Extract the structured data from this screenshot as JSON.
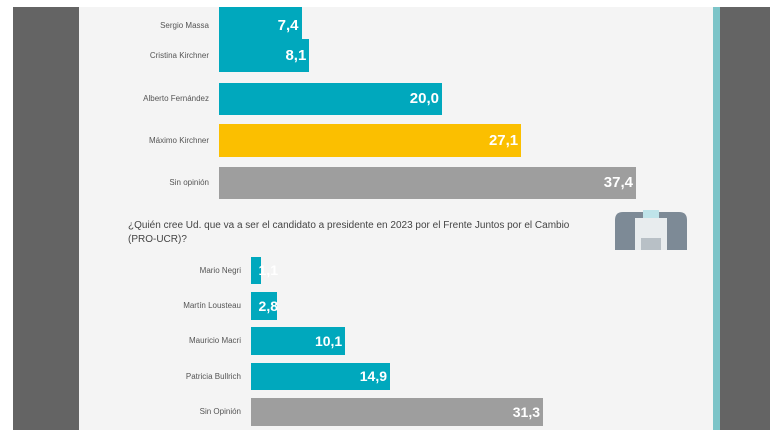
{
  "chart_data": [
    {
      "type": "bar",
      "orientation": "horizontal",
      "categories": [
        "Sergio Massa",
        "Cristina Kirchner",
        "Alberto Fernández",
        "Máximo Kirchner",
        "Sin opinión"
      ],
      "values": [
        7.4,
        8.1,
        20.0,
        27.1,
        37.4
      ],
      "value_labels": [
        "7,4",
        "8,1",
        "20,0",
        "27,1",
        "37,4"
      ],
      "colors": [
        "#00a8bd",
        "#00a8bd",
        "#00a8bd",
        "#fbbf00",
        "#9e9e9e"
      ]
    },
    {
      "type": "bar",
      "orientation": "horizontal",
      "title": "¿Quién cree Ud. que va a ser el candidato a presidente en 2023 por el Frente Juntos por el Cambio (PRO-UCR)?",
      "categories": [
        "Mario Negri",
        "Martín Lousteau",
        "Mauricio Macri",
        "Patricia Bullrich",
        "Sin Opinión"
      ],
      "values": [
        1.1,
        2.8,
        10.1,
        14.9,
        31.3
      ],
      "value_labels": [
        "1,1",
        "2,8",
        "10,1",
        "14,9",
        "31,3"
      ],
      "colors": [
        "#00a8bd",
        "#00a8bd",
        "#00a8bd",
        "#00a8bd",
        "#9e9e9e"
      ]
    }
  ],
  "icons": {
    "ballot": "ballot-box-icon"
  }
}
